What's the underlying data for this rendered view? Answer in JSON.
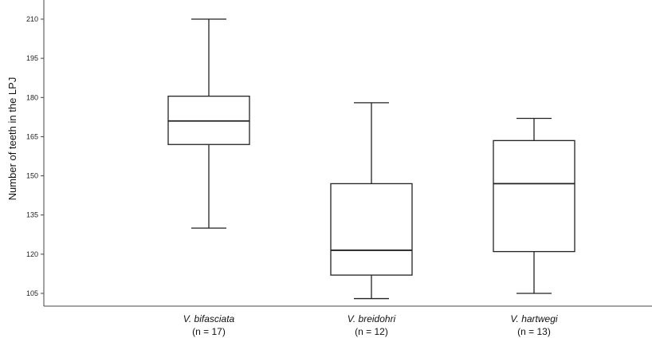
{
  "chart_data": {
    "type": "boxplot",
    "ylabel": "Number of teeth in the LPJ",
    "xlabel": "",
    "ylim": [
      100,
      215
    ],
    "yticks": [
      105,
      120,
      135,
      150,
      165,
      180,
      195,
      210
    ],
    "grid": false,
    "categories": [
      {
        "name": "V. bifasciata",
        "n_label": "(n = 17)",
        "min": 130,
        "q1": 162,
        "median": 171,
        "q3": 180.5,
        "max": 210
      },
      {
        "name": "V. breidohri",
        "n_label": "(n = 12)",
        "min": 103,
        "q1": 112,
        "median": 121.5,
        "q3": 147,
        "max": 178
      },
      {
        "name": "V. hartwegi",
        "n_label": "(n = 13)",
        "min": 105,
        "q1": 121,
        "median": 147,
        "q3": 163.5,
        "max": 172
      }
    ]
  }
}
